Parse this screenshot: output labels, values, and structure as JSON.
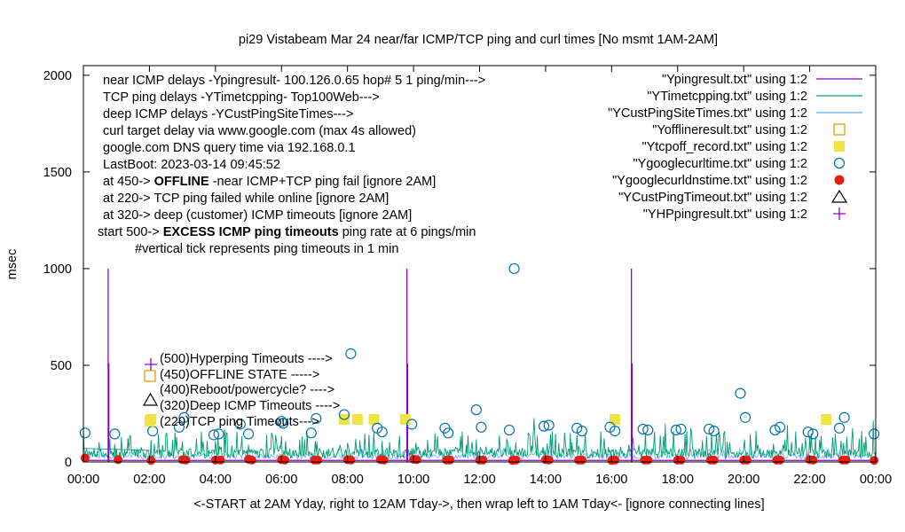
{
  "chart_data": {
    "type": "line",
    "title": "pi29 Vistabeam Mar 24  near/far ICMP/TCP ping and curl times [No msmt 1AM-2AM]",
    "ylabel": "msec",
    "xlabel": "<-START at 2AM Yday, right to 12AM Tday->, then wrap left to 1AM Tday<- [ignore connecting lines]",
    "xlim": [
      0,
      24
    ],
    "ylim": [
      0,
      2050
    ],
    "grid": false,
    "legend_position": "top-right",
    "x_ticks": [
      "00:00",
      "02:00",
      "04:00",
      "06:00",
      "08:00",
      "10:00",
      "12:00",
      "14:00",
      "16:00",
      "18:00",
      "20:00",
      "22:00",
      "00:00"
    ],
    "y_ticks": [
      "0",
      "500",
      "1000",
      "1500",
      "2000"
    ],
    "notes": [
      {
        "text": "near ICMP delays -Ypingresult- 100.126.0.65 hop# 5 1 ping/min--->"
      },
      {
        "text": "TCP ping delays -YTimetcpping- Top100Web--->"
      },
      {
        "text": "deep ICMP delays -YCustPingSiteTimes--->"
      },
      {
        "text": "curl target delay via www.google.com (max 4s allowed)"
      },
      {
        "text": "google.com DNS query time via 192.168.0.1"
      },
      {
        "text": "LastBoot: 2023-03-14 09:45:52"
      },
      {
        "pre": "at 450-> ",
        "bold": "OFFLINE",
        "post": " -near ICMP+TCP ping fail [ignore 2AM]"
      },
      {
        "text": "at 220-> TCP ping failed while online [ignore 2AM]"
      },
      {
        "text": "at 320-> deep (customer) ICMP timeouts [ignore 2AM]"
      },
      {
        "pre": "start 500-> ",
        "bold": "EXCESS ICMP ping timeouts",
        "post": "  ping rate at 6 pings/min"
      },
      {
        "text": "#vertical tick represents ping timeouts in 1 min"
      }
    ],
    "inline_labels": [
      "(500)Hyperping Timeouts ---->",
      "(450)OFFLINE STATE ----->",
      "(400)Reboot/powercycle? ---->",
      "(320)Deep ICMP Timeouts ---->",
      "(220)TCP ping Timeouts--->"
    ],
    "series": [
      {
        "name": "\"Ypingresult.txt\" using 1:2",
        "style": "line",
        "color": "#9400d3",
        "baseline": 8,
        "spikes": [
          [
            0.75,
            1000
          ],
          [
            0.77,
            510
          ],
          [
            9.8,
            1000
          ],
          [
            9.82,
            510
          ],
          [
            16.6,
            1000
          ],
          [
            16.62,
            510
          ]
        ]
      },
      {
        "name": "\"YTimetcpping.txt\" using 1:2",
        "style": "line",
        "color": "#009e73",
        "typical_range": [
          20,
          160
        ],
        "max_spikes": 240
      },
      {
        "name": "\"YCustPingSiteTimes.txt\" using 1:2",
        "style": "line",
        "color": "#56b4e9",
        "typical_range": [
          15,
          70
        ]
      },
      {
        "name": "\"Yofflineresult.txt\" using 1:2",
        "style": "open-square",
        "color": "#e69f00",
        "points": []
      },
      {
        "name": "\"Ytcpoff_record.txt\" using 1:2",
        "style": "filled-square",
        "color": "#f0e442",
        "points": [
          [
            2.05,
            220
          ],
          [
            7.9,
            220
          ],
          [
            8.3,
            220
          ],
          [
            8.8,
            220
          ],
          [
            9.75,
            220
          ],
          [
            16.1,
            220
          ],
          [
            22.5,
            220
          ]
        ]
      },
      {
        "name": "\"Ygooglecurltime.txt\" using 1:2",
        "style": "open-circle",
        "color": "#0072b2",
        "points": [
          [
            0.05,
            150
          ],
          [
            0.95,
            145
          ],
          [
            2.1,
            160
          ],
          [
            2.9,
            180
          ],
          [
            3.05,
            230
          ],
          [
            3.95,
            140
          ],
          [
            4.1,
            145
          ],
          [
            4.75,
            195
          ],
          [
            5.0,
            145
          ],
          [
            6.0,
            210
          ],
          [
            6.05,
            200
          ],
          [
            6.9,
            150
          ],
          [
            7.05,
            225
          ],
          [
            7.9,
            245
          ],
          [
            8.1,
            560
          ],
          [
            8.9,
            175
          ],
          [
            9.05,
            155
          ],
          [
            9.95,
            195
          ],
          [
            10.95,
            175
          ],
          [
            11.05,
            150
          ],
          [
            11.9,
            270
          ],
          [
            12.05,
            180
          ],
          [
            12.9,
            165
          ],
          [
            13.05,
            1000
          ],
          [
            13.95,
            185
          ],
          [
            14.1,
            190
          ],
          [
            14.95,
            175
          ],
          [
            15.1,
            160
          ],
          [
            15.95,
            180
          ],
          [
            16.1,
            160
          ],
          [
            16.95,
            170
          ],
          [
            17.1,
            165
          ],
          [
            17.95,
            165
          ],
          [
            18.1,
            170
          ],
          [
            18.95,
            170
          ],
          [
            19.1,
            160
          ],
          [
            19.9,
            355
          ],
          [
            20.05,
            230
          ],
          [
            20.95,
            165
          ],
          [
            21.1,
            180
          ],
          [
            21.95,
            155
          ],
          [
            22.1,
            145
          ],
          [
            22.9,
            175
          ],
          [
            23.05,
            230
          ],
          [
            23.95,
            145
          ]
        ]
      },
      {
        "name": "\"Ygooglecurldnstime.txt\" using 1:2",
        "style": "filled-circle",
        "color": "#e51e10",
        "points": [
          [
            0.05,
            20
          ],
          [
            1.05,
            12
          ],
          [
            2.05,
            8
          ],
          [
            3.0,
            12
          ],
          [
            3.1,
            10
          ],
          [
            4.0,
            10
          ],
          [
            4.15,
            10
          ],
          [
            5.0,
            14
          ],
          [
            5.1,
            10
          ],
          [
            6.0,
            12
          ],
          [
            6.1,
            10
          ],
          [
            7.0,
            10
          ],
          [
            7.1,
            10
          ],
          [
            8.0,
            12
          ],
          [
            8.1,
            10
          ],
          [
            9.0,
            12
          ],
          [
            9.1,
            10
          ],
          [
            10.0,
            14
          ],
          [
            10.1,
            12
          ],
          [
            11.0,
            10
          ],
          [
            11.1,
            10
          ],
          [
            12.0,
            10
          ],
          [
            12.1,
            10
          ],
          [
            13.0,
            8
          ],
          [
            13.1,
            10
          ],
          [
            14.0,
            12
          ],
          [
            14.1,
            10
          ],
          [
            15.0,
            10
          ],
          [
            15.1,
            10
          ],
          [
            16.0,
            8
          ],
          [
            16.1,
            10
          ],
          [
            17.0,
            10
          ],
          [
            17.1,
            10
          ],
          [
            18.0,
            10
          ],
          [
            18.1,
            10
          ],
          [
            19.0,
            10
          ],
          [
            19.1,
            10
          ],
          [
            20.0,
            10
          ],
          [
            20.1,
            10
          ],
          [
            21.0,
            10
          ],
          [
            21.1,
            10
          ],
          [
            22.0,
            12
          ],
          [
            22.1,
            10
          ],
          [
            23.0,
            10
          ],
          [
            23.1,
            10
          ],
          [
            23.95,
            8
          ]
        ]
      },
      {
        "name": "\"YCustPingTimeout.txt\" using 1:2",
        "style": "open-triangle",
        "color": "#000000",
        "points": []
      },
      {
        "name": "\"YHPpingresult.txt\" using 1:2",
        "style": "plus",
        "color": "#9400d3",
        "points": []
      }
    ]
  }
}
